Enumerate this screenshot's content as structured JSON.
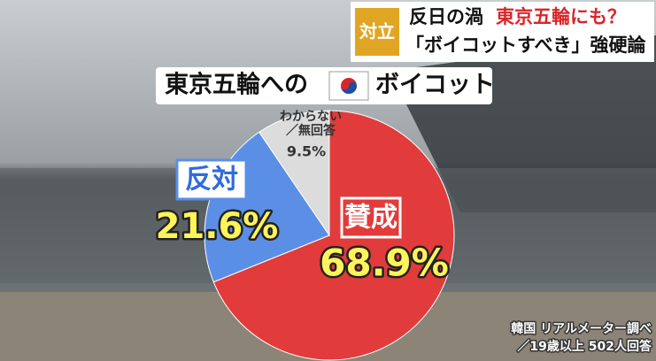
{
  "headline": {
    "tag": "対立",
    "line1": [
      "反日の渦",
      "東京五輪にも？"
    ],
    "line2": "「ボイコットすべき」強硬論"
  },
  "chart_data": {
    "type": "pie",
    "title": [
      "東京五輪への",
      "ボイコット"
    ],
    "categories": [
      "賛成",
      "反対",
      "わからない\n／無回答"
    ],
    "values": [
      68.9,
      21.6,
      9.5
    ],
    "value_labels": [
      "68.9%",
      "21.6%",
      "9.5%"
    ],
    "colors": [
      "#e23b3b",
      "#5b8fe6",
      "#dcdcdc"
    ]
  },
  "source": [
    "韓国 リアルメーター調べ",
    "／19歳以上 502人回答"
  ]
}
